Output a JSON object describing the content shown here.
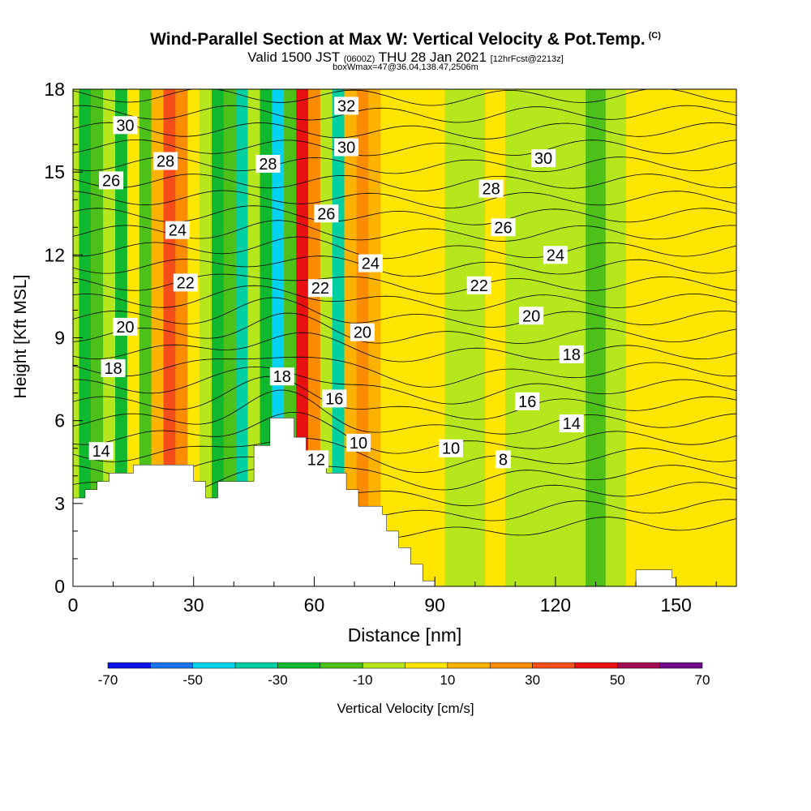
{
  "header": {
    "title": "Wind-Parallel Section at Max W: Vertical Velocity & Pot.Temp.",
    "copyright": "(C)",
    "valid_prefix": "Valid 1500 JST",
    "valid_utc": "(0600Z)",
    "valid_date": "THU 28 Jan 2021",
    "forecast": "[12hrFcst@2213z]",
    "box_info": "boxWmax=47@36.04,138.47,2506m"
  },
  "chart_data": {
    "type": "heatmap",
    "title": "Wind-Parallel Section at Max W: Vertical Velocity & Pot.Temp.",
    "xlabel": "Distance [nm]",
    "ylabel": "Height [Kft MSL]",
    "xlim": [
      0,
      165
    ],
    "ylim": [
      0,
      18
    ],
    "x_ticks": [
      0,
      30,
      60,
      90,
      120,
      150
    ],
    "y_ticks": [
      0,
      3,
      6,
      9,
      12,
      15,
      18
    ],
    "colorbar": {
      "label": "Vertical Velocity [cm/s]",
      "tick_labels": [
        "-70",
        "-50",
        "-30",
        "-10",
        "10",
        "30",
        "50",
        "70"
      ],
      "bounds": [
        -70,
        -60,
        -50,
        -40,
        -30,
        -20,
        -10,
        0,
        10,
        20,
        30,
        40,
        50,
        60,
        70
      ],
      "colors": [
        "#0a14e6",
        "#1a74ee",
        "#00d2f0",
        "#00cfa2",
        "#10b830",
        "#4ec01a",
        "#b6e61c",
        "#ffe600",
        "#fdb200",
        "#fb8c00",
        "#f64e1a",
        "#e81010",
        "#a00c4e",
        "#6e0c8a"
      ]
    },
    "vertical_velocity_columns": [
      {
        "x": 0,
        "w": -5
      },
      {
        "x": 3,
        "w": -28
      },
      {
        "x": 6,
        "w": -14
      },
      {
        "x": 9,
        "w": -3
      },
      {
        "x": 12,
        "w": -22
      },
      {
        "x": 15,
        "w": 4
      },
      {
        "x": 18,
        "w": -12
      },
      {
        "x": 21,
        "w": 15
      },
      {
        "x": 24,
        "w": 34
      },
      {
        "x": 27,
        "w": 24
      },
      {
        "x": 30,
        "w": 7
      },
      {
        "x": 33,
        "w": -8
      },
      {
        "x": 36,
        "w": -24
      },
      {
        "x": 39,
        "w": -18
      },
      {
        "x": 42,
        "w": -32
      },
      {
        "x": 45,
        "w": -10
      },
      {
        "x": 48,
        "w": -26
      },
      {
        "x": 51,
        "w": -44
      },
      {
        "x": 54,
        "w": -12
      },
      {
        "x": 57,
        "w": 40
      },
      {
        "x": 60,
        "w": 28
      },
      {
        "x": 63,
        "w": -6
      },
      {
        "x": 66,
        "w": -40
      },
      {
        "x": 69,
        "w": 12
      },
      {
        "x": 72,
        "w": 22
      },
      {
        "x": 75,
        "w": 14
      },
      {
        "x": 78,
        "w": 9
      },
      {
        "x": 81,
        "w": 6
      },
      {
        "x": 84,
        "w": 5
      },
      {
        "x": 87,
        "w": 4
      },
      {
        "x": 90,
        "w": 3
      },
      {
        "x": 95,
        "w": -4
      },
      {
        "x": 100,
        "w": -2
      },
      {
        "x": 105,
        "w": 6
      },
      {
        "x": 110,
        "w": -7
      },
      {
        "x": 115,
        "w": -6
      },
      {
        "x": 120,
        "w": -9
      },
      {
        "x": 125,
        "w": -6
      },
      {
        "x": 130,
        "w": -11
      },
      {
        "x": 135,
        "w": -6
      },
      {
        "x": 140,
        "w": 4
      },
      {
        "x": 145,
        "w": 3
      },
      {
        "x": 150,
        "w": 6
      },
      {
        "x": 155,
        "w": 4
      },
      {
        "x": 160,
        "w": 2
      },
      {
        "x": 165,
        "w": 3
      }
    ],
    "terrain": [
      [
        0,
        3.2
      ],
      [
        3,
        3.2
      ],
      [
        3,
        3.5
      ],
      [
        6,
        3.5
      ],
      [
        6,
        3.8
      ],
      [
        9,
        3.8
      ],
      [
        9,
        4.1
      ],
      [
        15,
        4.1
      ],
      [
        15,
        4.4
      ],
      [
        30,
        4.4
      ],
      [
        30,
        3.8
      ],
      [
        33,
        3.8
      ],
      [
        33,
        3.2
      ],
      [
        36,
        3.2
      ],
      [
        36,
        3.8
      ],
      [
        45,
        3.8
      ],
      [
        45,
        5.1
      ],
      [
        49,
        5.1
      ],
      [
        49,
        6.1
      ],
      [
        55,
        6.1
      ],
      [
        55,
        5.4
      ],
      [
        58,
        5.4
      ],
      [
        58,
        4.8
      ],
      [
        63,
        4.8
      ],
      [
        63,
        4.1
      ],
      [
        68,
        4.1
      ],
      [
        68,
        3.5
      ],
      [
        71,
        3.5
      ],
      [
        71,
        2.9
      ],
      [
        77,
        2.9
      ],
      [
        77,
        2.6
      ],
      [
        78,
        2.6
      ],
      [
        78,
        2.0
      ],
      [
        81,
        2.0
      ],
      [
        81,
        1.4
      ],
      [
        84,
        1.4
      ],
      [
        84,
        0.8
      ],
      [
        87,
        0.8
      ],
      [
        87,
        0.2
      ],
      [
        90,
        0.2
      ],
      [
        90,
        0
      ],
      [
        0,
        0
      ]
    ],
    "terrain_right": [
      [
        140,
        0
      ],
      [
        140,
        0.6
      ],
      [
        149,
        0.6
      ],
      [
        149,
        0.3
      ],
      [
        150,
        0.3
      ],
      [
        150,
        0
      ]
    ],
    "theta_labels": [
      {
        "text": "30",
        "x": 13,
        "y": 16.7
      },
      {
        "text": "28",
        "x": 23,
        "y": 15.4
      },
      {
        "text": "26",
        "x": 9.5,
        "y": 14.7
      },
      {
        "text": "24",
        "x": 26,
        "y": 12.9
      },
      {
        "text": "22",
        "x": 28,
        "y": 11.0
      },
      {
        "text": "20",
        "x": 13,
        "y": 9.4
      },
      {
        "text": "18",
        "x": 10,
        "y": 7.9
      },
      {
        "text": "14",
        "x": 7,
        "y": 4.9
      },
      {
        "text": "28",
        "x": 48.5,
        "y": 15.3
      },
      {
        "text": "32",
        "x": 68,
        "y": 17.4
      },
      {
        "text": "30",
        "x": 68,
        "y": 15.9
      },
      {
        "text": "26",
        "x": 63,
        "y": 13.5
      },
      {
        "text": "24",
        "x": 74,
        "y": 11.7
      },
      {
        "text": "22",
        "x": 61.5,
        "y": 10.8
      },
      {
        "text": "20",
        "x": 72,
        "y": 9.2
      },
      {
        "text": "18",
        "x": 52,
        "y": 7.6
      },
      {
        "text": "16",
        "x": 65,
        "y": 6.8
      },
      {
        "text": "10",
        "x": 71,
        "y": 5.2
      },
      {
        "text": "12",
        "x": 60.5,
        "y": 4.6
      },
      {
        "text": "30",
        "x": 117,
        "y": 15.5
      },
      {
        "text": "28",
        "x": 104,
        "y": 14.4
      },
      {
        "text": "26",
        "x": 107,
        "y": 13.0
      },
      {
        "text": "24",
        "x": 120,
        "y": 12.0
      },
      {
        "text": "22",
        "x": 101,
        "y": 10.9
      },
      {
        "text": "20",
        "x": 114,
        "y": 9.8
      },
      {
        "text": "18",
        "x": 124,
        "y": 8.4
      },
      {
        "text": "16",
        "x": 113,
        "y": 6.7
      },
      {
        "text": "14",
        "x": 124,
        "y": 5.9
      },
      {
        "text": "10",
        "x": 94,
        "y": 5.0
      },
      {
        "text": "8",
        "x": 107,
        "y": 4.6
      }
    ]
  }
}
